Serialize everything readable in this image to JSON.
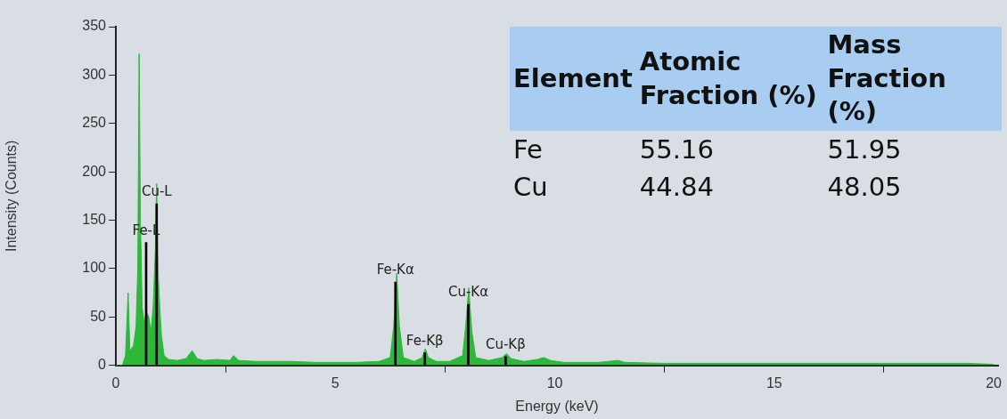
{
  "chart_data": [
    {
      "type": "area",
      "xlabel": "Energy (keV)",
      "ylabel": "Intensity (Counts)",
      "xlim": [
        0,
        20.1
      ],
      "ylim": [
        0,
        350
      ],
      "xticks": [
        0,
        5,
        10,
        15,
        20
      ],
      "yticks": [
        0,
        50,
        100,
        150,
        200,
        250,
        300,
        350
      ],
      "series": [
        {
          "color": "#2db83a",
          "x": [
            0,
            0.15,
            0.22,
            0.28,
            0.32,
            0.4,
            0.46,
            0.5,
            0.53,
            0.56,
            0.6,
            0.64,
            0.7,
            0.75,
            0.8,
            0.85,
            0.9,
            0.93,
            0.96,
            1.0,
            1.04,
            1.1,
            1.2,
            1.4,
            1.6,
            1.74,
            1.85,
            2.0,
            2.3,
            2.6,
            2.68,
            2.8,
            3.2,
            3.6,
            4.0,
            4.5,
            5.0,
            5.5,
            6.0,
            6.25,
            6.33,
            6.4,
            6.46,
            6.55,
            6.8,
            6.98,
            7.05,
            7.12,
            7.3,
            7.6,
            7.9,
            7.97,
            8.04,
            8.11,
            8.2,
            8.5,
            8.8,
            8.9,
            9.0,
            9.3,
            9.6,
            9.75,
            9.9,
            10.2,
            11.0,
            11.45,
            11.6,
            12.5,
            14.0,
            16.0,
            18.0,
            19.4,
            20.0
          ],
          "values": [
            0,
            0,
            10,
            75,
            15,
            20,
            40,
            100,
            322,
            150,
            60,
            45,
            55,
            50,
            35,
            60,
            120,
            188,
            100,
            60,
            30,
            10,
            6,
            5,
            7,
            15,
            7,
            5,
            6,
            5,
            10,
            5,
            4,
            4,
            4,
            3,
            3,
            3,
            4,
            8,
            40,
            95,
            40,
            8,
            4,
            8,
            17,
            8,
            4,
            4,
            10,
            40,
            80,
            35,
            8,
            5,
            8,
            12,
            7,
            4,
            6,
            8,
            5,
            3,
            3,
            5,
            3,
            2,
            2,
            2,
            2,
            2,
            1
          ]
        },
        {
          "type": "bar",
          "color": "#000000",
          "x": [
            0.69,
            0.93,
            6.37,
            7.04,
            8.03,
            8.88
          ],
          "values": [
            127,
            167,
            86,
            13,
            63,
            9
          ]
        }
      ],
      "annotations": [
        {
          "text": "Fe-L",
          "x": 0.69,
          "y": 127
        },
        {
          "text": "Cu-L",
          "x": 0.93,
          "y": 167
        },
        {
          "text": "Fe-Kα",
          "x": 6.37,
          "y": 86
        },
        {
          "text": "Fe-Kβ",
          "x": 7.04,
          "y": 13
        },
        {
          "text": "Cu-Kα",
          "x": 8.03,
          "y": 63
        },
        {
          "text": "Cu-Kβ",
          "x": 8.88,
          "y": 9
        }
      ]
    },
    {
      "type": "other",
      "legend_title": "Element",
      "categories": [
        "Fe",
        "Cu"
      ],
      "data_labels": true,
      "series": [
        {
          "name": "Atomic Fraction (%)",
          "values": [
            55.16,
            44.84
          ]
        },
        {
          "name": "Mass Fraction (%)",
          "values": [
            51.95,
            48.05
          ]
        }
      ]
    }
  ]
}
